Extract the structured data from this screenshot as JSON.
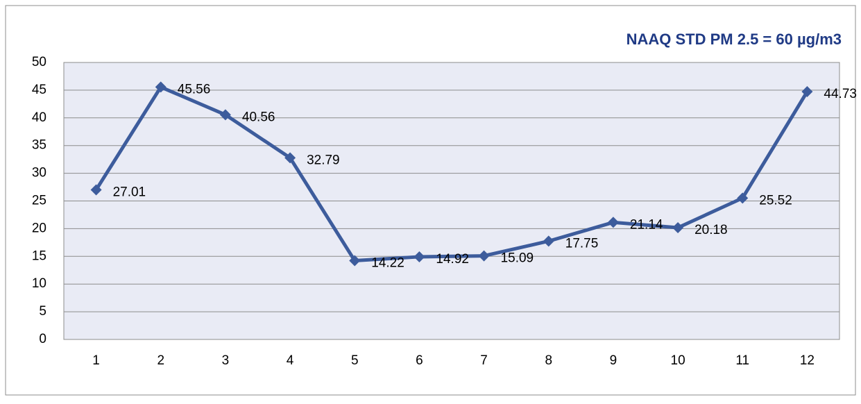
{
  "chart_data": {
    "type": "line",
    "annotation": "NAAQ STD PM 2.5 = 60 µg/m3",
    "categories": [
      "1",
      "2",
      "3",
      "4",
      "5",
      "6",
      "7",
      "8",
      "9",
      "10",
      "11",
      "12"
    ],
    "series": [
      {
        "color": "#3d5c9c",
        "values": [
          27.01,
          45.56,
          40.56,
          32.79,
          14.22,
          14.92,
          15.09,
          17.75,
          21.14,
          20.18,
          25.52,
          44.73
        ]
      }
    ],
    "ylim": [
      0,
      50
    ],
    "yticks": [
      0,
      5,
      10,
      15,
      20,
      25,
      30,
      35,
      40,
      45,
      50
    ],
    "grid": true
  }
}
